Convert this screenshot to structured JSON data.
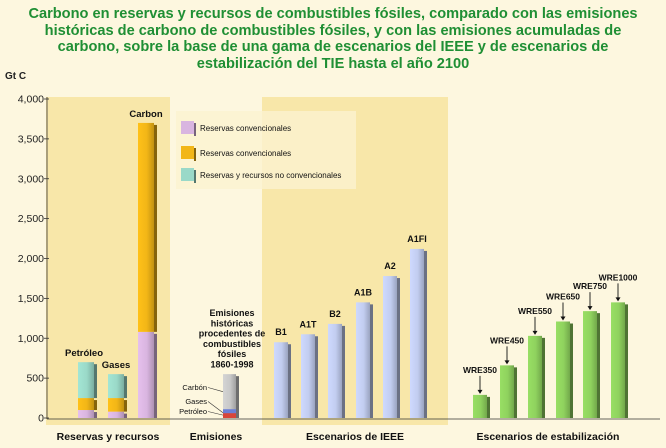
{
  "title_lines": [
    "Carbono en reservas y recursos de combustibles fósiles, comparado con las emisiones",
    "históricas de carbono de combustibles fósiles, y con las emisiones acumuladas de",
    "carbono, sobre la base de una gama de escenarios del IEEE y de escenarios de",
    "estabilización del TIE hasta el año 2100"
  ],
  "chart_data": {
    "type": "bar",
    "ylabel": "Gt C",
    "ylim": [
      0,
      4000
    ],
    "yticks": [
      "0",
      "500",
      "1,000",
      "1,500",
      "2,000",
      "2,500",
      "3,000",
      "3,500",
      "4,000"
    ],
    "legend": [
      "Reservas convencionales",
      "Reservas convencionales",
      "Reservas y recursos no convencionales"
    ],
    "colors": {
      "purple": "#d9b5e0",
      "orange": "#f2b617",
      "teal": "#9ad9c8",
      "ieee": "#c2cdf0",
      "stab": "#8fd25e",
      "emis_gray": "#c8c8c8",
      "emis_blue": "#6c7fd6",
      "emis_red": "#d8463a",
      "panel": "#f8e7a9",
      "bg": "#fdf7df"
    },
    "groups": [
      {
        "label": "Reservas y recursos",
        "bars": [
          {
            "name": "Petróleo",
            "segments": [
              100,
              150,
              450
            ]
          },
          {
            "name": "Gases",
            "segments": [
              80,
              170,
              300
            ]
          },
          {
            "name": "Carbon",
            "segments": [
              1080,
              2620,
              0
            ]
          }
        ]
      },
      {
        "label": "Emisiones",
        "annotation": [
          "Emisiones",
          "históricas",
          "procedentes de",
          "combustibles",
          "fósiles",
          "1860-1998"
        ],
        "parts": [
          {
            "name": "Carbón",
            "value": 550
          },
          {
            "name": "Gases",
            "value": 110
          },
          {
            "name": "Petróleo",
            "value": 60
          }
        ]
      },
      {
        "label": "Escenarios de IEEE",
        "bars": [
          {
            "name": "B1",
            "value": 950
          },
          {
            "name": "A1T",
            "value": 1050
          },
          {
            "name": "B2",
            "value": 1180
          },
          {
            "name": "A1B",
            "value": 1450
          },
          {
            "name": "A2",
            "value": 1780
          },
          {
            "name": "A1FI",
            "value": 2120
          }
        ]
      },
      {
        "label": "Escenarios de estabilización",
        "bars": [
          {
            "name": "WRE350",
            "value": 290
          },
          {
            "name": "WRE450",
            "value": 660
          },
          {
            "name": "WRE550",
            "value": 1030
          },
          {
            "name": "WRE650",
            "value": 1210
          },
          {
            "name": "WRE750",
            "value": 1340
          },
          {
            "name": "WRE1000",
            "value": 1450
          }
        ]
      }
    ]
  }
}
